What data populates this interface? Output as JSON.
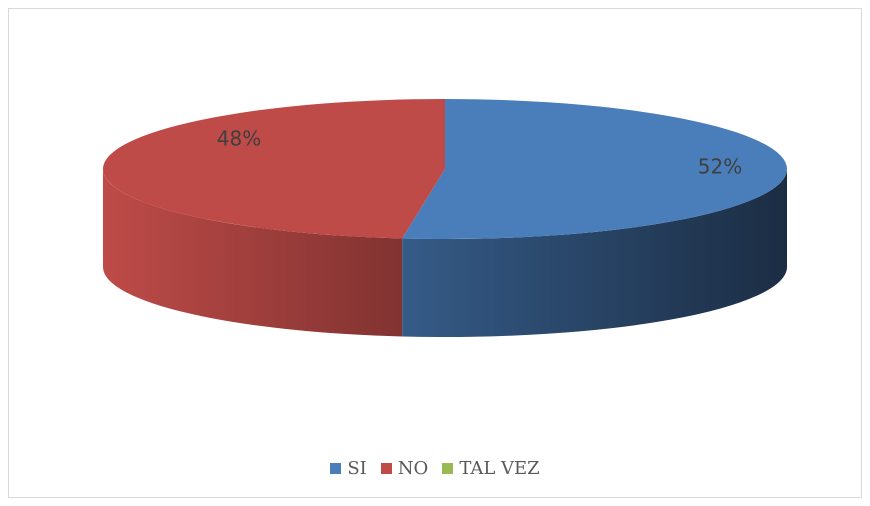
{
  "chart_data": {
    "type": "pie",
    "style": "3d",
    "categories": [
      "SI",
      "NO",
      "TAL VEZ"
    ],
    "values": [
      52,
      48,
      0
    ],
    "labels": [
      "52%",
      "48%",
      ""
    ],
    "colors": [
      "#4a7ebb",
      "#be4b48",
      "#98b954"
    ],
    "legend": "bottom"
  }
}
